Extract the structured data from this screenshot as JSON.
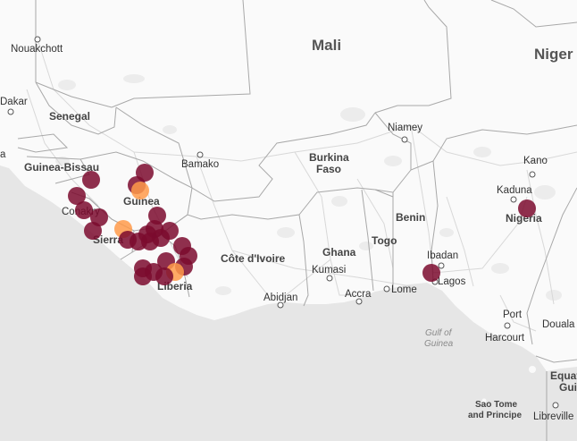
{
  "map": {
    "countries": {
      "mali": "Mali",
      "niger": "Niger",
      "senegal": "Senegal",
      "guinea_bissau": "Guinea-Bissau",
      "guinea": "Guinea",
      "sierra": "Sierra",
      "liberia": "Liberia",
      "cote_divoire": "Côte d'Ivoire",
      "burkina_line1": "Burkina",
      "burkina_line2": "Faso",
      "ghana": "Ghana",
      "togo": "Togo",
      "benin": "Benin",
      "nigeria": "Nigeria",
      "equat": "Equat",
      "gui": "Gui",
      "sao_tome_line1": "Sao Tome",
      "sao_tome_line2": "and Principe",
      "dakar": "Dakar",
      "conakry": "Conakry",
      "left_a": "a"
    },
    "cities": {
      "nouakchott": "Nouakchott",
      "bamako": "Bamako",
      "niamey": "Niamey",
      "kano": "Kano",
      "kaduna": "Kaduna",
      "kumasi": "Kumasi",
      "abidjan": "Abidjan",
      "accra": "Accra",
      "lome": "Lome",
      "ibadan": "Ibadan",
      "lagos": "Lagos",
      "port_harcourt_line1": "Port",
      "port_harcourt_line2": "Harcourt",
      "douala": "Douala",
      "libreville": "Libreville"
    },
    "water": {
      "gulf_line1": "Gulf of",
      "gulf_line2": "Guinea"
    },
    "colors": {
      "ocean": "#e6e6e6",
      "land": "#fafafa",
      "border": "#a8a8a8",
      "road": "#d6d6d6",
      "marker_dark": "#7b0a2e",
      "marker_light": "#ff9a4a"
    }
  }
}
